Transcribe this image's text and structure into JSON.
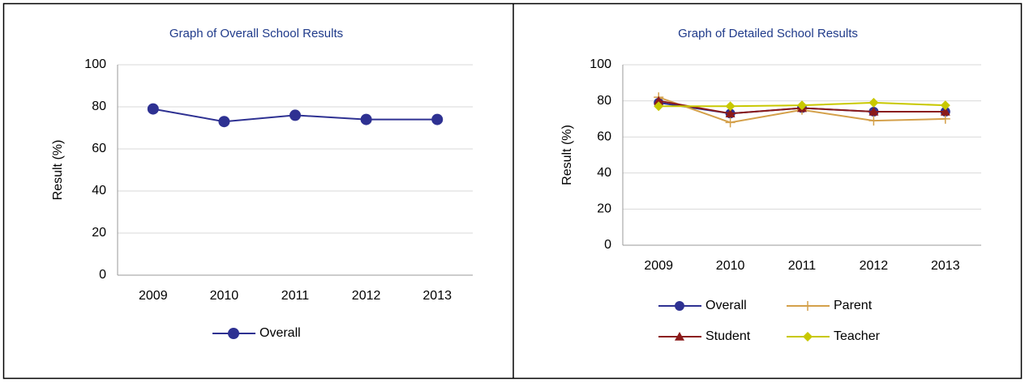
{
  "chart_data": [
    {
      "type": "line",
      "title": "Graph of Overall School Results",
      "y_label": "Result (%)",
      "categories": [
        "2009",
        "2010",
        "2011",
        "2012",
        "2013"
      ],
      "series": [
        {
          "name": "Overall",
          "color": "#2e3192",
          "marker": "circle",
          "values": [
            79,
            73,
            76,
            74,
            74
          ]
        }
      ],
      "ylim": [
        0,
        100
      ],
      "yticks": [
        0,
        20,
        40,
        60,
        80,
        100
      ],
      "grid": true,
      "legend": "bottom"
    },
    {
      "type": "line",
      "title": "Graph of Detailed School Results",
      "y_label": "Result (%)",
      "categories": [
        "2009",
        "2010",
        "2011",
        "2012",
        "2013"
      ],
      "series": [
        {
          "name": "Overall",
          "color": "#2e3192",
          "marker": "circle",
          "values": [
            79,
            73,
            76,
            74,
            74
          ]
        },
        {
          "name": "Parent",
          "color": "#d4a04a",
          "marker": "plus",
          "values": [
            82,
            68,
            75,
            69,
            70
          ]
        },
        {
          "name": "Student",
          "color": "#8b1a1a",
          "marker": "triangle",
          "values": [
            80,
            73,
            76,
            74,
            74
          ]
        },
        {
          "name": "Teacher",
          "color": "#c8c800",
          "marker": "diamond",
          "values": [
            77,
            77,
            77.5,
            79,
            77.5
          ]
        }
      ],
      "ylim": [
        0,
        100
      ],
      "yticks": [
        0,
        20,
        40,
        60,
        80,
        100
      ],
      "grid": true,
      "legend": "bottom"
    }
  ]
}
